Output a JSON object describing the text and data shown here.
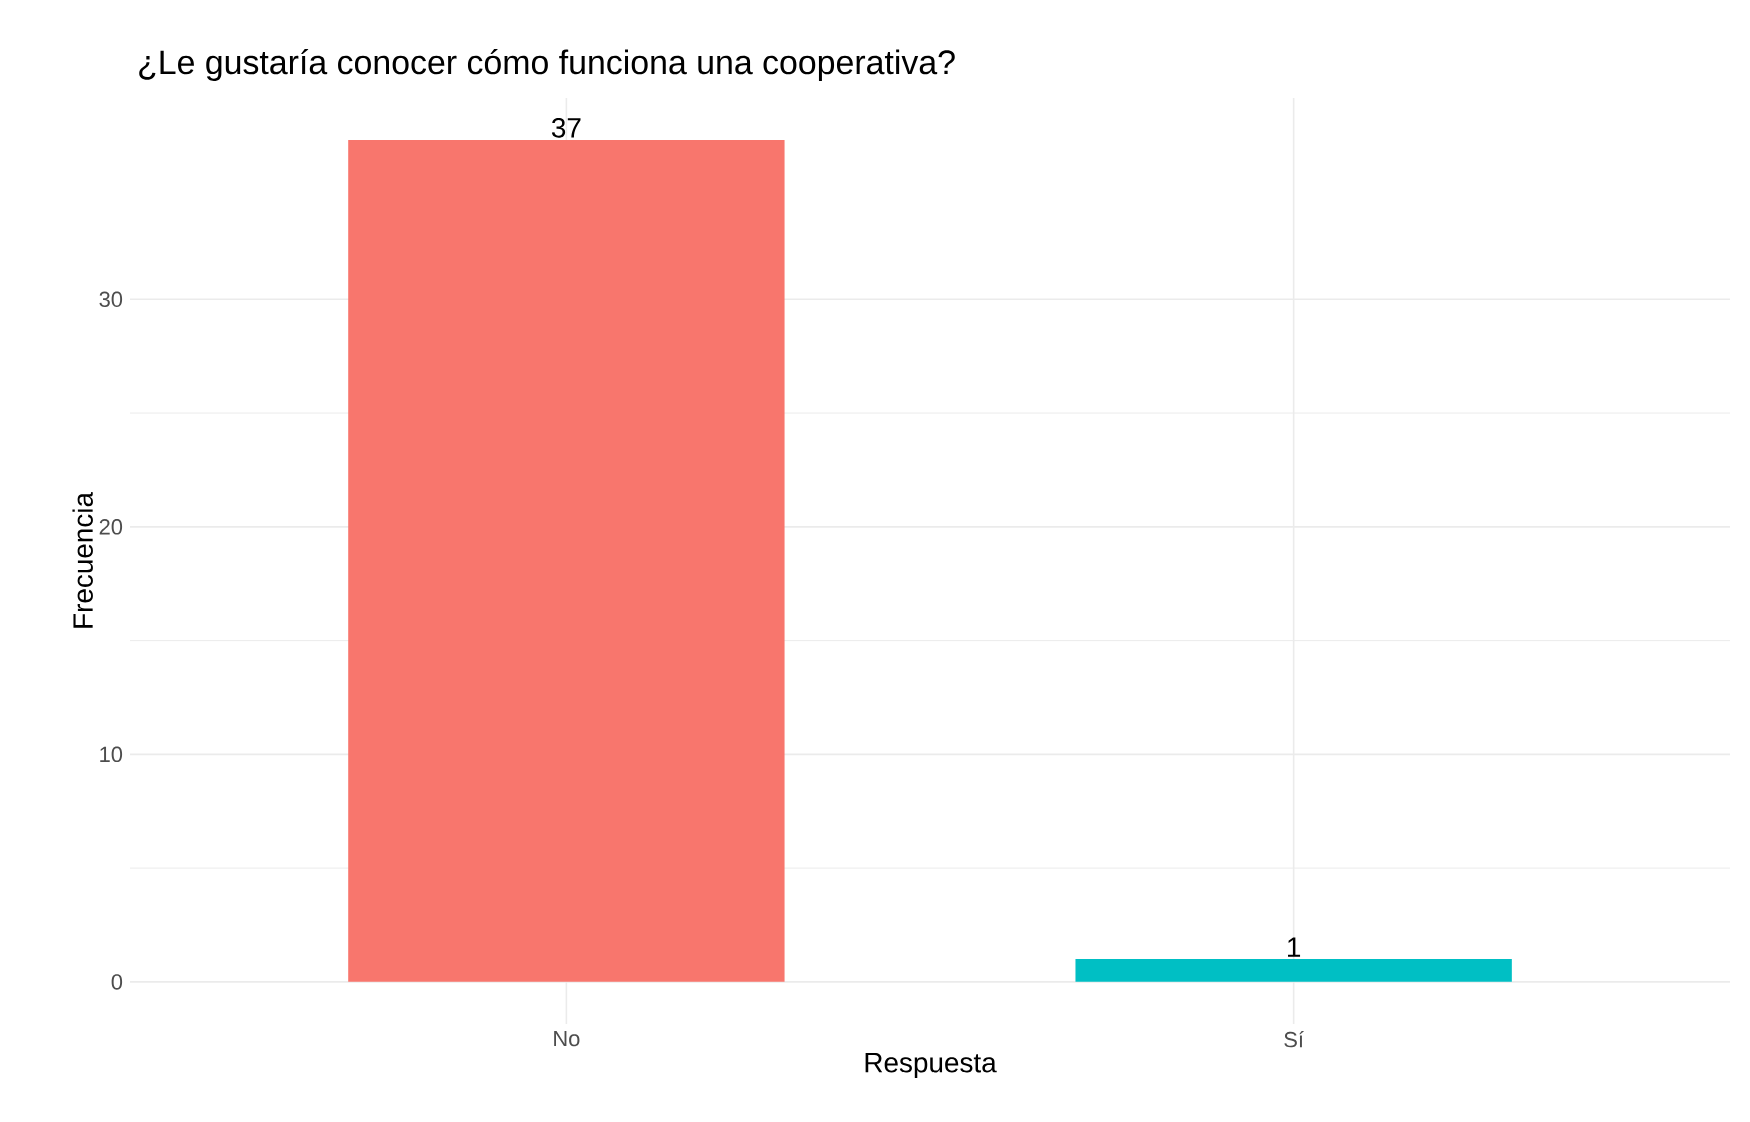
{
  "chart_data": {
    "type": "bar",
    "title": "¿Le gustaría conocer cómo funciona una cooperativa?",
    "xlabel": "Respuesta",
    "ylabel": "Frecuencia",
    "categories": [
      "No",
      "Sí"
    ],
    "values": [
      37,
      1
    ],
    "colors": [
      "#f8766d",
      "#00bfc4"
    ],
    "ylim": [
      -1.85,
      38.85
    ],
    "yticks": [
      0,
      10,
      20,
      30
    ],
    "grid": true,
    "data_labels": true
  }
}
